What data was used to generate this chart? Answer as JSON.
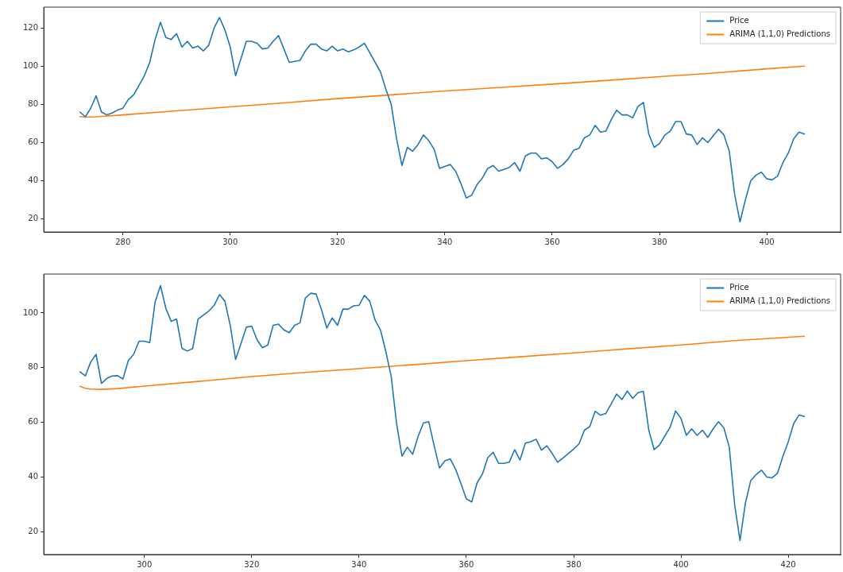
{
  "chart_data": [
    {
      "type": "line",
      "legend": "top right",
      "marker": "none",
      "line_style": "solid",
      "grid": false,
      "xlim": [
        265.25,
        413.75
      ],
      "xticks": [
        280,
        300,
        320,
        340,
        360,
        380,
        400
      ],
      "ylim": [
        13.2,
        130.9
      ],
      "yticks": [
        20,
        40,
        60,
        80,
        100,
        120
      ],
      "series": [
        {
          "name": "Price",
          "color": "#1f77b4",
          "x": [
            272,
            273,
            274,
            275,
            276,
            277,
            278,
            279,
            280,
            281,
            282,
            283,
            284,
            285,
            286,
            287,
            288,
            289,
            290,
            291,
            292,
            293,
            294,
            295,
            296,
            297,
            298,
            299,
            300,
            301,
            302,
            303,
            304,
            305,
            306,
            307,
            308,
            309,
            310,
            311,
            312,
            313,
            314,
            315,
            316,
            317,
            318,
            319,
            320,
            321,
            322,
            323,
            324,
            325,
            326,
            327,
            328,
            329,
            330,
            331,
            332,
            333,
            334,
            335,
            336,
            337,
            338,
            339,
            340,
            341,
            342,
            343,
            344,
            345,
            346,
            347,
            348,
            349,
            350,
            351,
            352,
            353,
            354,
            355,
            356,
            357,
            358,
            359,
            360,
            361,
            362,
            363,
            364,
            365,
            366,
            367,
            368,
            369,
            370,
            371,
            372,
            373,
            374,
            375,
            376,
            377,
            378,
            379,
            380,
            381,
            382,
            383,
            384,
            385,
            386,
            387,
            388,
            389,
            390,
            391,
            392,
            393,
            394,
            395,
            396,
            397,
            398,
            399,
            400,
            401,
            402,
            403,
            404,
            405,
            406,
            407
          ],
          "values": [
            76,
            73.5,
            78,
            84.5,
            76,
            74.5,
            75.5,
            77,
            78,
            82.5,
            85,
            90,
            95,
            102,
            114,
            123,
            115,
            114,
            117,
            110,
            113,
            109.5,
            110.5,
            108,
            111,
            120,
            125.5,
            119,
            110,
            95,
            104,
            113,
            113,
            112,
            109,
            109.5,
            113,
            116,
            109,
            102,
            102.5,
            103,
            108,
            111.5,
            111.5,
            109,
            108,
            110.5,
            108,
            109,
            107.5,
            108.5,
            110,
            112,
            107,
            102,
            97,
            88,
            80,
            62,
            48,
            57.5,
            55.5,
            59,
            64,
            61,
            56.5,
            46.5,
            47.5,
            48.5,
            45,
            38.5,
            31,
            32.5,
            38,
            41.5,
            46.5,
            48,
            45,
            46,
            47,
            49.5,
            45,
            53,
            54.5,
            54.5,
            51.5,
            52,
            50,
            46.5,
            48.5,
            51.5,
            56,
            57,
            62.5,
            64,
            69,
            65.5,
            66,
            72,
            77,
            74.5,
            74.5,
            73,
            79,
            81,
            64.5,
            57.5,
            59.5,
            64,
            66,
            71,
            71,
            64.5,
            64,
            59,
            62.5,
            60,
            63.5,
            67,
            64,
            55.5,
            33,
            18.5,
            30,
            40,
            43,
            44.5,
            41,
            40.5,
            42.5,
            49.5,
            54.5,
            62,
            65.5,
            64.5
          ]
        },
        {
          "name": "ARIMA (1,1,0) Predictions",
          "color": "#ff7f0e",
          "x": [
            272,
            273,
            275,
            280,
            290,
            300,
            310,
            320,
            330,
            340,
            350,
            360,
            370,
            380,
            390,
            400,
            407
          ],
          "values": [
            73.6,
            73.3,
            73.5,
            74.5,
            76.6,
            78.7,
            80.8,
            83,
            85,
            87,
            88.8,
            90.6,
            92.5,
            94.5,
            96.4,
            98.6,
            100
          ]
        }
      ]
    },
    {
      "type": "line",
      "legend": "top right",
      "marker": "none",
      "line_style": "solid",
      "grid": false,
      "xlim": [
        281.25,
        429.75
      ],
      "xticks": [
        300,
        320,
        340,
        360,
        380,
        400,
        420
      ],
      "ylim": [
        11.8,
        114.2
      ],
      "yticks": [
        20,
        40,
        60,
        80,
        100
      ],
      "series": [
        {
          "name": "Price",
          "color": "#1f77b4",
          "x": [
            288,
            289,
            290,
            291,
            292,
            293,
            294,
            295,
            296,
            297,
            298,
            299,
            300,
            301,
            302,
            303,
            304,
            305,
            306,
            307,
            308,
            309,
            310,
            311,
            312,
            313,
            314,
            315,
            316,
            317,
            318,
            319,
            320,
            321,
            322,
            323,
            324,
            325,
            326,
            327,
            328,
            329,
            330,
            331,
            332,
            333,
            334,
            335,
            336,
            337,
            338,
            339,
            340,
            341,
            342,
            343,
            344,
            345,
            346,
            347,
            348,
            349,
            350,
            351,
            352,
            353,
            354,
            355,
            356,
            357,
            358,
            359,
            360,
            361,
            362,
            363,
            364,
            365,
            366,
            367,
            368,
            369,
            370,
            371,
            372,
            373,
            374,
            375,
            376,
            377,
            378,
            379,
            380,
            381,
            382,
            383,
            384,
            385,
            386,
            387,
            388,
            389,
            390,
            391,
            392,
            393,
            394,
            395,
            396,
            397,
            398,
            399,
            400,
            401,
            402,
            403,
            404,
            405,
            406,
            407,
            408,
            409,
            410,
            411,
            412,
            413,
            414,
            415,
            416,
            417,
            418,
            419,
            420,
            421,
            422,
            423
          ],
          "values": [
            78.5,
            77,
            82.1,
            84.9,
            74.3,
            76.1,
            77,
            77.1,
            75.9,
            82.6,
            84.9,
            89.7,
            89.7,
            89.2,
            104,
            110,
            101.7,
            96.9,
            97.8,
            87.1,
            86.1,
            87,
            97.8,
            99.2,
            100.7,
            102.8,
            106.7,
            104.3,
            95.5,
            83,
            88.8,
            94.8,
            95.2,
            90.2,
            87.3,
            88.3,
            95.5,
            95.9,
            93.8,
            92.8,
            95.5,
            96.4,
            105.5,
            107.2,
            106.9,
            101.2,
            94.5,
            98.2,
            95.5,
            101.4,
            101.4,
            102.6,
            102.8,
            106.4,
            104.3,
            97.4,
            93.8,
            85.9,
            76.8,
            59.6,
            47.7,
            51,
            48.4,
            54.9,
            59.8,
            60.3,
            51.5,
            43.4,
            46,
            46.7,
            42.9,
            37.7,
            32.1,
            31,
            37.9,
            41.2,
            47.2,
            49.1,
            45.1,
            45.1,
            45.5,
            50.1,
            46.3,
            52.5,
            53,
            53.9,
            49.9,
            51.5,
            48.7,
            45.5,
            47,
            48.7,
            50.3,
            52.2,
            57.2,
            58.5,
            64.1,
            62.7,
            63.3,
            66.8,
            70.4,
            68.4,
            71.5,
            68.8,
            70.9,
            71.4,
            57.2,
            50.1,
            51.8,
            55.1,
            58.4,
            64.2,
            61.5,
            55.3,
            57.7,
            55.3,
            57.2,
            54.6,
            57.7,
            60.3,
            58,
            51,
            30,
            16.9,
            30.5,
            38.8,
            41,
            42.6,
            40.1,
            39.8,
            41.5,
            47.7,
            53,
            59.6,
            62.8,
            62.2
          ]
        },
        {
          "name": "ARIMA (1,1,0) Predictions",
          "color": "#ff7f0e",
          "x": [
            288,
            289,
            290,
            292,
            295,
            300,
            310,
            320,
            330,
            340,
            350,
            360,
            370,
            380,
            390,
            400,
            410,
            423
          ],
          "values": [
            73.2,
            72.5,
            72.2,
            72.1,
            72.4,
            73.3,
            75,
            76.8,
            78.3,
            79.7,
            81.1,
            82.6,
            84,
            85.4,
            86.9,
            88.3,
            89.9,
            91.5
          ]
        }
      ]
    }
  ]
}
